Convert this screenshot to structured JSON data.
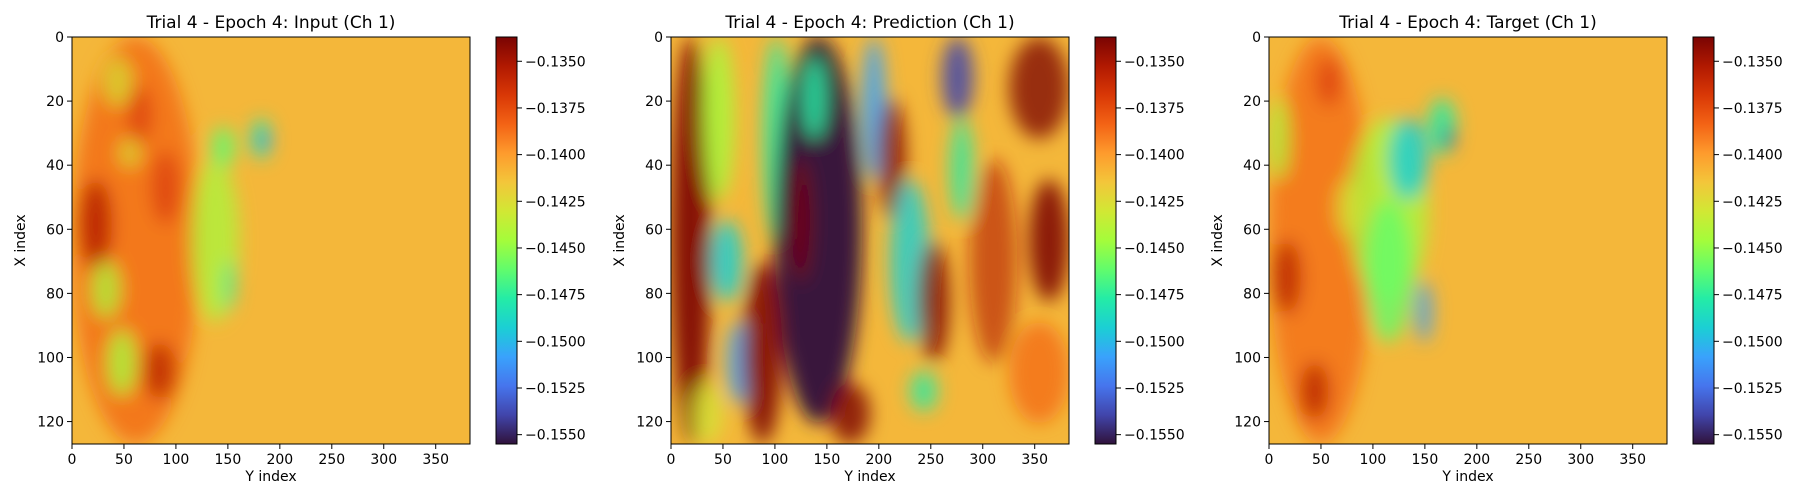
{
  "chart_data": [
    {
      "type": "heatmap",
      "title": "Trial 4 - Epoch 4: Input (Ch 1)",
      "xlabel": "Y index",
      "ylabel": "X index",
      "xlim": [
        0,
        383
      ],
      "ylim": [
        127,
        0
      ],
      "xticks": [
        "0",
        "50",
        "100",
        "150",
        "200",
        "250",
        "300",
        "350"
      ],
      "yticks": [
        "0",
        "20",
        "40",
        "60",
        "80",
        "100",
        "120"
      ],
      "colormap": "turbo",
      "color_range": [
        -0.1555,
        -0.1337
      ],
      "colorbar_ticks": [
        "−0.1350",
        "−0.1375",
        "−0.1400",
        "−0.1425",
        "−0.1450",
        "−0.1475",
        "−0.1500",
        "−0.1525",
        "−0.1550"
      ]
    },
    {
      "type": "heatmap",
      "title": "Trial 4 - Epoch 4: Prediction (Ch 1)",
      "xlabel": "Y index",
      "ylabel": "X index",
      "xlim": [
        0,
        383
      ],
      "ylim": [
        127,
        0
      ],
      "xticks": [
        "0",
        "50",
        "100",
        "150",
        "200",
        "250",
        "300",
        "350"
      ],
      "yticks": [
        "0",
        "20",
        "40",
        "60",
        "80",
        "100",
        "120"
      ],
      "colormap": "turbo",
      "color_range": [
        -0.1555,
        -0.1337
      ],
      "colorbar_ticks": [
        "−0.1350",
        "−0.1375",
        "−0.1400",
        "−0.1425",
        "−0.1450",
        "−0.1475",
        "−0.1500",
        "−0.1525",
        "−0.1550"
      ]
    },
    {
      "type": "heatmap",
      "title": "Trial 4 - Epoch 4: Target (Ch 1)",
      "xlabel": "Y index",
      "ylabel": "X index",
      "xlim": [
        0,
        383
      ],
      "ylim": [
        127,
        0
      ],
      "xticks": [
        "0",
        "50",
        "100",
        "150",
        "200",
        "250",
        "300",
        "350"
      ],
      "yticks": [
        "0",
        "20",
        "40",
        "60",
        "80",
        "100",
        "120"
      ],
      "colormap": "turbo",
      "color_range": [
        -0.1555,
        -0.1337
      ],
      "colorbar_ticks": [
        "−0.1350",
        "−0.1375",
        "−0.1400",
        "−0.1425",
        "−0.1450",
        "−0.1475",
        "−0.1500",
        "−0.1525",
        "−0.1550"
      ]
    }
  ],
  "colors": {
    "turbo_stops": [
      "#30123b",
      "#4145ab",
      "#4675ed",
      "#39a2fc",
      "#1bcfd4",
      "#24eca6",
      "#61fc6c",
      "#a4fc3b",
      "#d1e834",
      "#f3c63a",
      "#fe9b2d",
      "#f36315",
      "#d93806",
      "#b11901",
      "#7a0403"
    ]
  }
}
